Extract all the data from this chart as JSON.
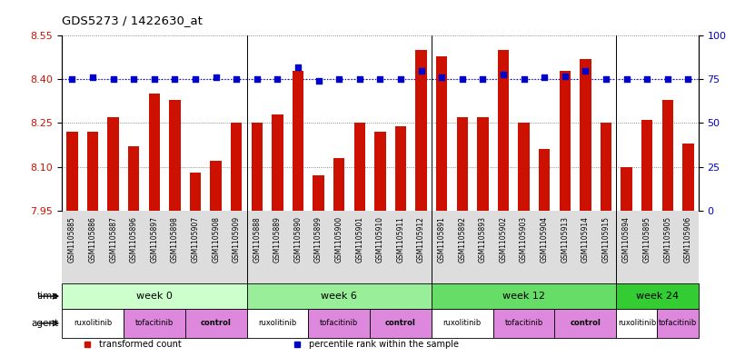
{
  "title": "GDS5273 / 1422630_at",
  "samples": [
    "GSM1105885",
    "GSM1105886",
    "GSM1105887",
    "GSM1105896",
    "GSM1105897",
    "GSM1105898",
    "GSM1105907",
    "GSM1105908",
    "GSM1105909",
    "GSM1105888",
    "GSM1105889",
    "GSM1105890",
    "GSM1105899",
    "GSM1105900",
    "GSM1105901",
    "GSM1105910",
    "GSM1105911",
    "GSM1105912",
    "GSM1105891",
    "GSM1105892",
    "GSM1105893",
    "GSM1105902",
    "GSM1105903",
    "GSM1105904",
    "GSM1105913",
    "GSM1105914",
    "GSM1105915",
    "GSM1105894",
    "GSM1105895",
    "GSM1105905",
    "GSM1105906"
  ],
  "bar_values": [
    8.22,
    8.22,
    8.27,
    8.17,
    8.35,
    8.33,
    8.08,
    8.12,
    8.25,
    8.25,
    8.28,
    8.43,
    8.07,
    8.13,
    8.25,
    8.22,
    8.24,
    8.5,
    8.48,
    8.27,
    8.27,
    8.5,
    8.25,
    8.16,
    8.43,
    8.47,
    8.25,
    8.1,
    8.26,
    8.33,
    8.18
  ],
  "percentile_values": [
    75,
    76,
    75,
    75,
    75,
    75,
    75,
    76,
    75,
    75,
    75,
    82,
    74,
    75,
    75,
    75,
    75,
    80,
    76,
    75,
    75,
    78,
    75,
    76,
    77,
    80,
    75,
    75,
    75,
    75,
    75
  ],
  "ylim_left": [
    7.95,
    8.55
  ],
  "ylim_right": [
    0,
    100
  ],
  "yticks_left": [
    7.95,
    8.1,
    8.25,
    8.4,
    8.55
  ],
  "yticks_right": [
    0,
    25,
    50,
    75,
    100
  ],
  "bar_color": "#CC1100",
  "dot_color": "#0000CC",
  "time_groups": [
    {
      "label": "week 0",
      "start": 0,
      "end": 9,
      "color": "#CCFFCC"
    },
    {
      "label": "week 6",
      "start": 9,
      "end": 18,
      "color": "#99EE99"
    },
    {
      "label": "week 12",
      "start": 18,
      "end": 27,
      "color": "#66DD66"
    },
    {
      "label": "week 24",
      "start": 27,
      "end": 31,
      "color": "#33CC33"
    }
  ],
  "agent_groups": [
    {
      "label": "ruxolitinib",
      "start": 0,
      "end": 3,
      "color": "#FFFFFF"
    },
    {
      "label": "tofacitinib",
      "start": 3,
      "end": 6,
      "color": "#DD88DD"
    },
    {
      "label": "control",
      "start": 6,
      "end": 9,
      "color": "#DD88DD"
    },
    {
      "label": "ruxolitinib",
      "start": 9,
      "end": 12,
      "color": "#FFFFFF"
    },
    {
      "label": "tofacitinib",
      "start": 12,
      "end": 15,
      "color": "#DD88DD"
    },
    {
      "label": "control",
      "start": 15,
      "end": 18,
      "color": "#DD88DD"
    },
    {
      "label": "ruxolitinib",
      "start": 18,
      "end": 21,
      "color": "#FFFFFF"
    },
    {
      "label": "tofacitinib",
      "start": 21,
      "end": 24,
      "color": "#DD88DD"
    },
    {
      "label": "control",
      "start": 24,
      "end": 27,
      "color": "#DD88DD"
    },
    {
      "label": "ruxolitinib",
      "start": 27,
      "end": 29,
      "color": "#FFFFFF"
    },
    {
      "label": "tofacitinib",
      "start": 29,
      "end": 31,
      "color": "#DD88DD"
    }
  ],
  "legend_items": [
    {
      "label": "transformed count",
      "color": "#CC1100"
    },
    {
      "label": "percentile rank within the sample",
      "color": "#0000CC"
    }
  ],
  "xticklabel_bg": "#DDDDDD",
  "background_color": "#FFFFFF"
}
